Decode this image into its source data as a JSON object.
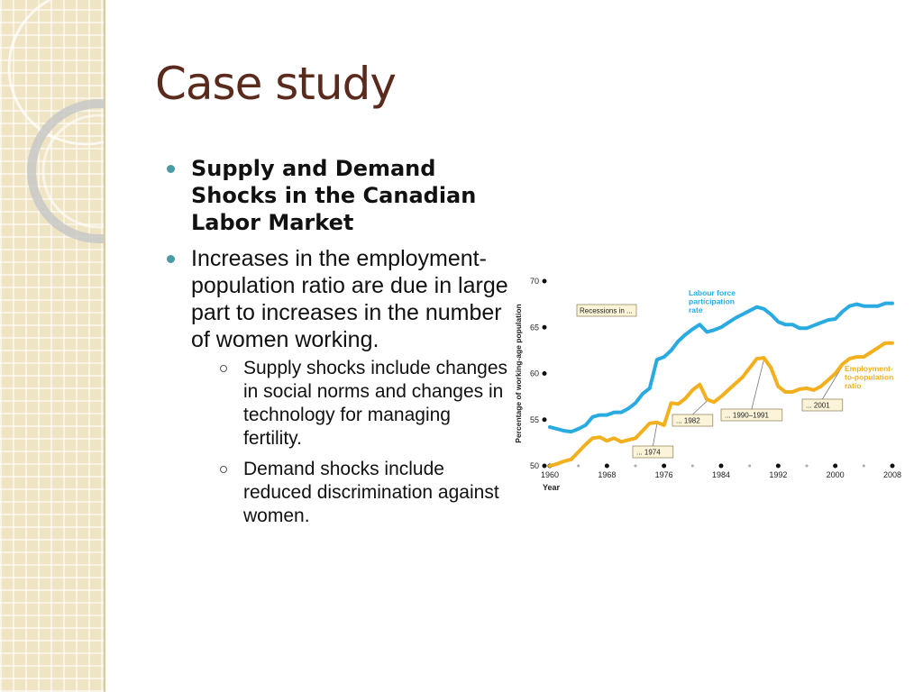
{
  "slide": {
    "title": "Case study",
    "bullets": [
      {
        "text": "Supply and Demand Shocks in the Canadian Labor Market",
        "bold": true
      },
      {
        "text": "Increases in the employment-population ratio are due in large part to increases in the number of women working.",
        "bold": false,
        "sub": [
          "Supply shocks include changes in social norms and changes in technology for managing fertility.",
          "Demand shocks include reduced discrimination against women."
        ]
      }
    ]
  },
  "chart_data": {
    "type": "line",
    "xlabel": "Year",
    "ylabel": "Percentage of working-age population",
    "xlim": [
      1960,
      2008
    ],
    "ylim": [
      50,
      70
    ],
    "xticks": [
      1960,
      1968,
      1976,
      1984,
      1992,
      2000,
      2008
    ],
    "yticks": [
      50,
      55,
      60,
      65,
      70
    ],
    "x": [
      1960,
      1961,
      1962,
      1963,
      1964,
      1965,
      1966,
      1967,
      1968,
      1969,
      1970,
      1971,
      1972,
      1973,
      1974,
      1975,
      1976,
      1977,
      1978,
      1979,
      1980,
      1981,
      1982,
      1983,
      1984,
      1985,
      1986,
      1987,
      1988,
      1989,
      1990,
      1991,
      1992,
      1993,
      1994,
      1995,
      1996,
      1997,
      1998,
      1999,
      2000,
      2001,
      2002,
      2003,
      2004,
      2005,
      2006,
      2007,
      2008
    ],
    "series": [
      {
        "name": "Labour force participation rate",
        "color": "#29abe2",
        "values": [
          54.2,
          54.0,
          53.8,
          53.7,
          54.0,
          54.4,
          55.3,
          55.5,
          55.5,
          55.8,
          55.8,
          56.2,
          56.8,
          57.8,
          58.4,
          61.5,
          61.8,
          62.5,
          63.5,
          64.2,
          64.8,
          65.3,
          64.5,
          64.7,
          65.0,
          65.5,
          66.0,
          66.4,
          66.8,
          67.2,
          67.0,
          66.4,
          65.6,
          65.3,
          65.3,
          64.9,
          64.9,
          65.2,
          65.5,
          65.8,
          65.9,
          66.7,
          67.3,
          67.5,
          67.3,
          67.3,
          67.3,
          67.6,
          67.6
        ]
      },
      {
        "name": "Employment-to-population ratio",
        "color": "#f2b01e",
        "values": [
          50.0,
          50.2,
          50.5,
          50.7,
          51.5,
          52.3,
          53.0,
          53.1,
          52.7,
          53.0,
          52.6,
          52.8,
          53.0,
          53.8,
          54.6,
          54.7,
          54.4,
          56.8,
          56.7,
          57.3,
          58.2,
          58.8,
          57.2,
          56.9,
          57.5,
          58.2,
          58.9,
          59.6,
          60.6,
          61.6,
          61.7,
          60.6,
          58.6,
          58.0,
          58.0,
          58.3,
          58.4,
          58.2,
          58.6,
          59.3,
          60.0,
          61.0,
          61.6,
          61.8,
          61.8,
          62.3,
          62.8,
          63.3,
          63.3
        ]
      }
    ],
    "series_labels": [
      {
        "lines": [
          "Labour force",
          "participation",
          "rate"
        ],
        "color": "#29abe2"
      },
      {
        "lines": [
          "Employment-",
          "to-population",
          "ratio"
        ],
        "color": "#f2b01e"
      }
    ],
    "recession_label": "Recessions in ...",
    "recessions": [
      {
        "label": "... 1974",
        "year": 1975
      },
      {
        "label": "... 1982",
        "year": 1982
      },
      {
        "label": "... 1990–1991",
        "year": 1990
      },
      {
        "label": "... 2001",
        "year": 2001
      }
    ],
    "grid": false
  }
}
